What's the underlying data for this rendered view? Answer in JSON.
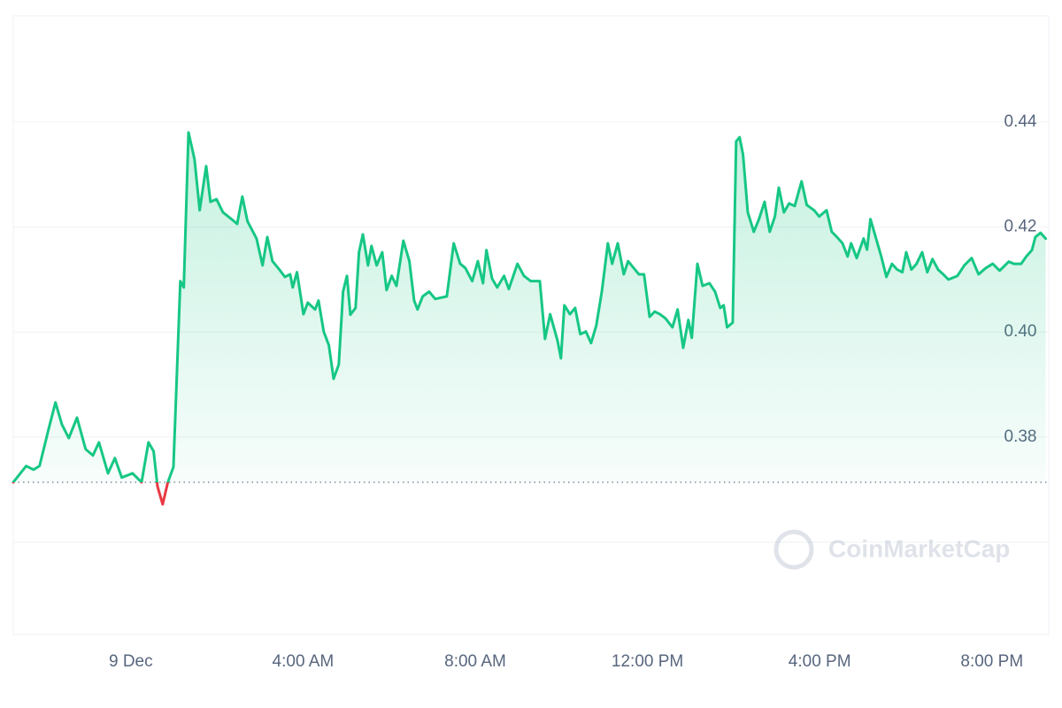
{
  "chart_data": {
    "type": "line",
    "x": [
      -2.73,
      -2.43,
      -2.26,
      -2.12,
      -1.91,
      -1.75,
      -1.6,
      -1.44,
      -1.25,
      -1.05,
      -0.88,
      -0.74,
      -0.53,
      -0.37,
      -0.21,
      0.04,
      0.25,
      0.41,
      0.53,
      0.62,
      0.74,
      0.86,
      0.99,
      1.15,
      1.23,
      1.34,
      1.48,
      1.6,
      1.75,
      1.85,
      1.99,
      2.14,
      2.34,
      2.47,
      2.59,
      2.71,
      2.92,
      3.06,
      3.17,
      3.29,
      3.45,
      3.58,
      3.7,
      3.76,
      3.86,
      4.01,
      4.11,
      4.28,
      4.36,
      4.48,
      4.6,
      4.71,
      4.83,
      4.93,
      5.02,
      5.1,
      5.22,
      5.3,
      5.39,
      5.51,
      5.59,
      5.71,
      5.84,
      5.94,
      6.06,
      6.17,
      6.33,
      6.47,
      6.58,
      6.66,
      6.78,
      6.93,
      7.07,
      7.34,
      7.5,
      7.65,
      7.77,
      7.93,
      8.06,
      8.18,
      8.26,
      8.39,
      8.51,
      8.67,
      8.78,
      8.98,
      9.13,
      9.29,
      9.5,
      9.62,
      9.74,
      9.91,
      9.99,
      10.07,
      10.2,
      10.32,
      10.44,
      10.57,
      10.69,
      10.81,
      10.94,
      11.08,
      11.18,
      11.31,
      11.45,
      11.55,
      11.68,
      11.8,
      11.92,
      12.05,
      12.17,
      12.29,
      12.42,
      12.58,
      12.7,
      12.83,
      12.95,
      13.03,
      13.16,
      13.28,
      13.44,
      13.57,
      13.69,
      13.77,
      13.85,
      13.98,
      14.06,
      14.14,
      14.22,
      14.33,
      14.47,
      14.59,
      14.72,
      14.84,
      14.96,
      15.05,
      15.17,
      15.29,
      15.42,
      15.58,
      15.7,
      15.87,
      15.99,
      16.16,
      16.28,
      16.4,
      16.53,
      16.65,
      16.73,
      16.86,
      17.02,
      17.1,
      17.18,
      17.31,
      17.43,
      17.55,
      17.68,
      17.8,
      17.92,
      18.01,
      18.13,
      18.25,
      18.38,
      18.5,
      18.62,
      18.75,
      18.87,
      18.99,
      19.2,
      19.36,
      19.53,
      19.69,
      19.86,
      20.02,
      20.18,
      20.39,
      20.51,
      20.68,
      20.8,
      20.93,
      21.01,
      21.13,
      21.25
    ],
    "series": [
      {
        "color": "#16c784",
        "below_color": "#ea3943",
        "values": [
          0.3714,
          0.3745,
          0.3738,
          0.3745,
          0.3815,
          0.3866,
          0.3824,
          0.3798,
          0.3837,
          0.3777,
          0.3765,
          0.379,
          0.3731,
          0.376,
          0.3723,
          0.3731,
          0.3714,
          0.379,
          0.3773,
          0.3706,
          0.3672,
          0.3714,
          0.3743,
          0.4097,
          0.4085,
          0.438,
          0.4329,
          0.4232,
          0.4316,
          0.4248,
          0.4253,
          0.4228,
          0.4215,
          0.4206,
          0.4258,
          0.4211,
          0.4178,
          0.4127,
          0.4181,
          0.4135,
          0.4119,
          0.4105,
          0.411,
          0.4085,
          0.4114,
          0.4034,
          0.4056,
          0.4043,
          0.406,
          0.4001,
          0.3975,
          0.3911,
          0.3938,
          0.4077,
          0.4107,
          0.4033,
          0.4046,
          0.4152,
          0.4186,
          0.4127,
          0.4164,
          0.4127,
          0.4152,
          0.408,
          0.4107,
          0.4088,
          0.4174,
          0.4135,
          0.406,
          0.4043,
          0.4068,
          0.4077,
          0.4063,
          0.4068,
          0.4169,
          0.413,
          0.4122,
          0.4097,
          0.4135,
          0.4093,
          0.4156,
          0.4102,
          0.4085,
          0.4107,
          0.4082,
          0.413,
          0.4107,
          0.4097,
          0.4097,
          0.3987,
          0.4034,
          0.3984,
          0.395,
          0.4051,
          0.4034,
          0.4046,
          0.3996,
          0.4001,
          0.3979,
          0.4012,
          0.4077,
          0.4169,
          0.413,
          0.4169,
          0.411,
          0.4135,
          0.4122,
          0.411,
          0.411,
          0.4029,
          0.4039,
          0.4034,
          0.4026,
          0.4009,
          0.4043,
          0.397,
          0.4023,
          0.3989,
          0.413,
          0.4088,
          0.4093,
          0.4077,
          0.4046,
          0.4051,
          0.4009,
          0.4018,
          0.4363,
          0.4371,
          0.4338,
          0.4228,
          0.4191,
          0.4215,
          0.4248,
          0.4191,
          0.422,
          0.4275,
          0.4228,
          0.4245,
          0.424,
          0.4287,
          0.4242,
          0.4232,
          0.422,
          0.4232,
          0.4191,
          0.4181,
          0.4169,
          0.4144,
          0.4169,
          0.4141,
          0.4178,
          0.4157,
          0.4215,
          0.4178,
          0.4144,
          0.4105,
          0.413,
          0.4119,
          0.4114,
          0.4152,
          0.4119,
          0.413,
          0.4152,
          0.4114,
          0.4139,
          0.4119,
          0.411,
          0.41,
          0.4107,
          0.4127,
          0.4141,
          0.411,
          0.4122,
          0.413,
          0.4117,
          0.4134,
          0.413,
          0.413,
          0.4144,
          0.4156,
          0.4181,
          0.4189,
          0.4178
        ]
      }
    ],
    "baseline": 0.3714,
    "xlim": [
      -2.73,
      21.32
    ],
    "xticks": [
      {
        "value": 0,
        "label": "9 Dec"
      },
      {
        "value": 4,
        "label": "4:00 AM"
      },
      {
        "value": 8,
        "label": "8:00 AM"
      },
      {
        "value": 12,
        "label": "12:00 PM"
      },
      {
        "value": 16,
        "label": "4:00 PM"
      },
      {
        "value": 20,
        "label": "8:00 PM"
      }
    ],
    "ylim": [
      0.3424,
      0.4602
    ],
    "yticks": [
      0.38,
      {
        "value": 0.4,
        "label": "0.40"
      },
      0.42,
      0.44
    ],
    "extra_gridlines": [
      0.36
    ],
    "grid": true,
    "watermark": "CoinMarketCap"
  }
}
